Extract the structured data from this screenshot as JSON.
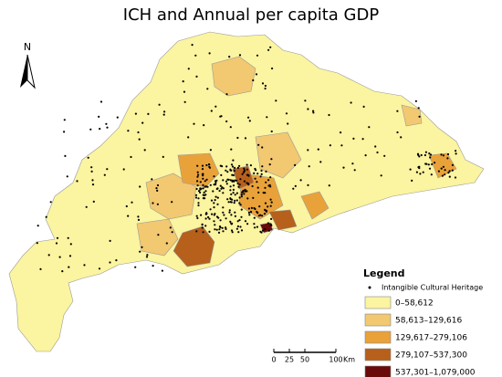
{
  "title": "ICH and Annual per capita GDP",
  "north_arrow": {
    "label": "N"
  },
  "legend": {
    "title": "Legend",
    "point_item": "Intangible Cultural Heritage",
    "classes": [
      {
        "label": "0–58,612",
        "color": "#fbf4a0"
      },
      {
        "label": "58,613–129,616",
        "color": "#f2c870"
      },
      {
        "label": "129,617–279,106",
        "color": "#e9a23a"
      },
      {
        "label": "279,107–537,300",
        "color": "#b6601c"
      },
      {
        "label": "537,301–1,079,000",
        "color": "#6b0a0a"
      }
    ]
  },
  "scale_bar": {
    "labels": [
      "0",
      "25",
      "50",
      "100"
    ],
    "unit": "Km"
  }
}
